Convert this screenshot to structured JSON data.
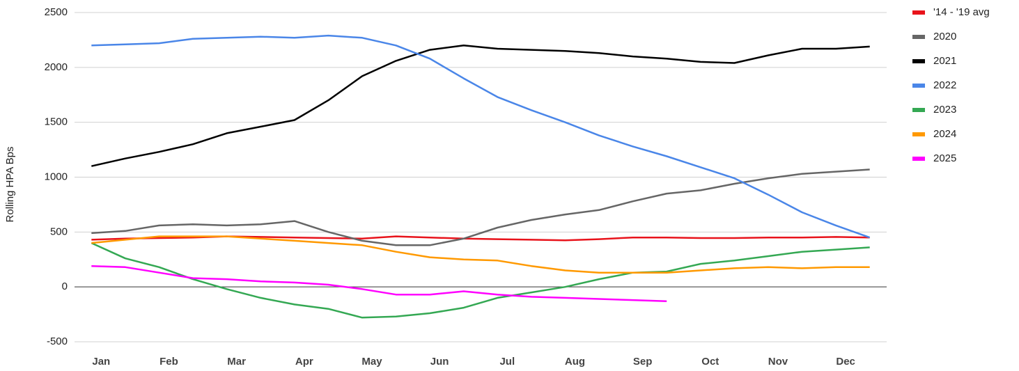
{
  "chart_data": {
    "type": "line",
    "y_label": "Rolling HPA Bps",
    "categories": [
      "Jan",
      null,
      "Feb",
      null,
      "Mar",
      null,
      "Apr",
      null,
      "May",
      null,
      "Jun",
      null,
      "Jul",
      null,
      "Aug",
      null,
      "Sep",
      null,
      "Oct",
      null,
      "Nov",
      null,
      "Dec",
      null
    ],
    "ylim": [
      -500,
      2500
    ],
    "yticks": [
      -500,
      0,
      500,
      1000,
      1500,
      2000,
      2500
    ],
    "grid": true,
    "legend": "right",
    "series": [
      {
        "name": "'14 - '19 avg",
        "color": "#e8131b",
        "values": [
          430,
          440,
          445,
          450,
          460,
          455,
          450,
          445,
          440,
          460,
          450,
          440,
          435,
          430,
          425,
          435,
          450,
          450,
          445,
          445,
          450,
          450,
          455,
          450
        ]
      },
      {
        "name": "2020",
        "color": "#666666",
        "values": [
          490,
          510,
          560,
          570,
          560,
          570,
          600,
          500,
          420,
          380,
          380,
          440,
          540,
          610,
          660,
          700,
          780,
          850,
          880,
          940,
          990,
          1030,
          1050,
          1070
        ]
      },
      {
        "name": "2021",
        "color": "#000000",
        "values": [
          1100,
          1170,
          1230,
          1300,
          1400,
          1460,
          1520,
          1700,
          1920,
          2060,
          2160,
          2200,
          2170,
          2160,
          2150,
          2130,
          2100,
          2080,
          2050,
          2040,
          2110,
          2170,
          2170,
          2190
        ]
      },
      {
        "name": "2022",
        "color": "#4a86e8",
        "values": [
          2200,
          2210,
          2220,
          2260,
          2270,
          2280,
          2270,
          2290,
          2270,
          2200,
          2080,
          1900,
          1730,
          1610,
          1500,
          1380,
          1280,
          1190,
          1090,
          990,
          840,
          680,
          560,
          450
        ]
      },
      {
        "name": "2023",
        "color": "#34a853",
        "values": [
          400,
          260,
          180,
          70,
          -20,
          -100,
          -160,
          -200,
          -280,
          -270,
          -240,
          -190,
          -100,
          -50,
          0,
          70,
          130,
          140,
          210,
          240,
          280,
          320,
          340,
          360
        ]
      },
      {
        "name": "2024",
        "color": "#ff9900",
        "values": [
          400,
          430,
          460,
          460,
          460,
          440,
          420,
          400,
          380,
          320,
          270,
          250,
          240,
          190,
          150,
          130,
          130,
          130,
          150,
          170,
          180,
          170,
          180,
          180
        ]
      },
      {
        "name": "2025",
        "color": "#ff00ff",
        "values": [
          190,
          180,
          130,
          80,
          70,
          50,
          40,
          20,
          -20,
          -70,
          -70,
          -40,
          -70,
          -90,
          -100,
          -110,
          -120,
          -130,
          null,
          null,
          null,
          null,
          null,
          null
        ]
      }
    ]
  }
}
